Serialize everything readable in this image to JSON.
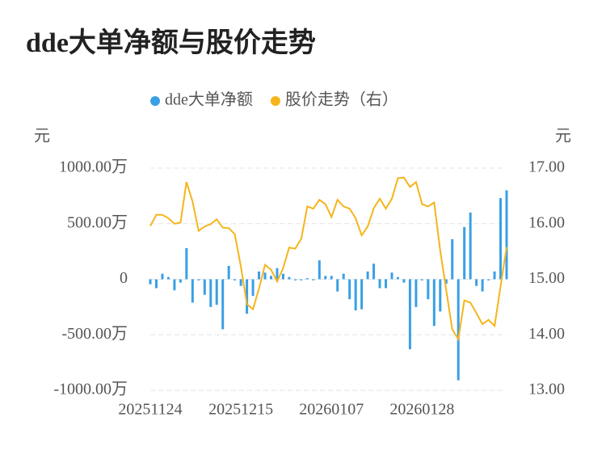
{
  "chart_data": {
    "type": "bar-line",
    "title": "dde大单净额与股价走势",
    "y_unit": "元",
    "y2_unit": "元",
    "categories": [
      "20251124",
      null,
      null,
      null,
      null,
      null,
      null,
      null,
      null,
      null,
      null,
      null,
      null,
      null,
      null,
      "20251215",
      null,
      null,
      null,
      null,
      null,
      null,
      null,
      null,
      null,
      null,
      null,
      null,
      null,
      null,
      "20260107",
      null,
      null,
      null,
      null,
      null,
      null,
      null,
      null,
      null,
      null,
      null,
      null,
      null,
      null,
      "20260128",
      null,
      null,
      null,
      null,
      null,
      null,
      null,
      null,
      null,
      null,
      null,
      null,
      null,
      null
    ],
    "series": [
      {
        "name": "dde大单净额",
        "color": "#3a9fe6",
        "kind": "bar",
        "axis": "y",
        "values": [
          -45,
          -80,
          50,
          20,
          -100,
          -30,
          280,
          -210,
          -10,
          -140,
          -250,
          -230,
          -450,
          120,
          -10,
          -60,
          -310,
          -150,
          70,
          60,
          30,
          100,
          50,
          20,
          -10,
          -10,
          10,
          -10,
          170,
          30,
          30,
          -110,
          50,
          -180,
          -280,
          -270,
          70,
          140,
          -80,
          -80,
          60,
          20,
          -30,
          -630,
          -250,
          -10,
          -180,
          -420,
          -290,
          -40,
          360,
          -910,
          470,
          600,
          -60,
          -110,
          -10,
          70,
          730,
          800
        ]
      },
      {
        "name": "股价走势（右）",
        "color": "#f5b51b",
        "kind": "line",
        "axis": "y2",
        "values": [
          15.96,
          16.16,
          16.16,
          16.1,
          16.0,
          16.02,
          16.75,
          16.4,
          15.87,
          15.95,
          15.99,
          16.08,
          15.93,
          15.92,
          15.81,
          15.23,
          14.55,
          14.46,
          14.83,
          15.26,
          15.17,
          14.96,
          15.2,
          15.57,
          15.55,
          15.73,
          16.31,
          16.27,
          16.43,
          16.35,
          16.12,
          16.43,
          16.31,
          16.27,
          16.1,
          15.79,
          15.95,
          16.28,
          16.45,
          16.27,
          16.45,
          16.82,
          16.83,
          16.66,
          16.75,
          16.35,
          16.31,
          16.38,
          15.52,
          14.8,
          14.1,
          13.92,
          14.62,
          14.58,
          14.39,
          14.19,
          14.27,
          14.16,
          14.87,
          15.58
        ]
      }
    ],
    "ylim": [
      -1000,
      1000
    ],
    "yticks": [
      {
        "value": -1000,
        "label": "-1000.00万"
      },
      {
        "value": -500,
        "label": "-500.00万"
      },
      0,
      {
        "value": 500,
        "label": "500.00万"
      },
      {
        "value": 1000,
        "label": "1000.00万"
      }
    ],
    "y2lim": [
      13,
      17
    ],
    "y2ticks": [
      {
        "value": 13,
        "label": "13.00"
      },
      {
        "value": 14,
        "label": "14.00"
      },
      {
        "value": 15,
        "label": "15.00"
      },
      {
        "value": 16,
        "label": "16.00"
      },
      {
        "value": 17,
        "label": "17.00"
      }
    ],
    "grid": true
  }
}
